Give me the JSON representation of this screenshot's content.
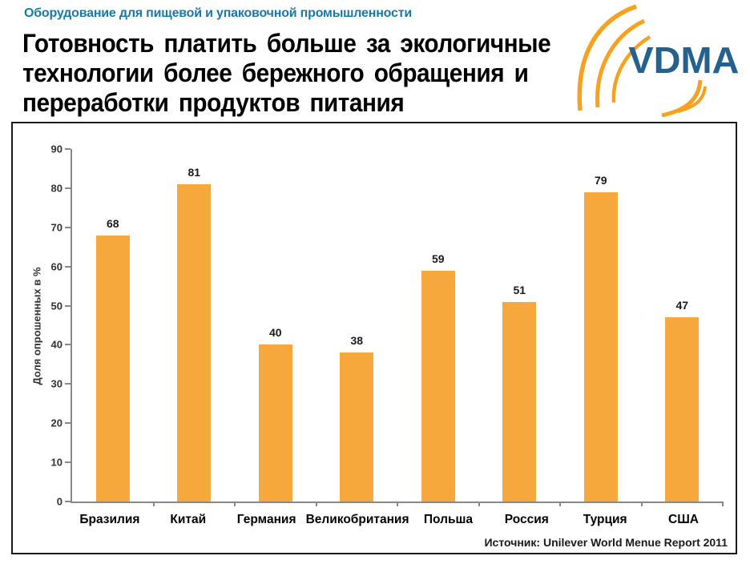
{
  "header": {
    "kicker": "Оборудование для пищевой и упаковочной промышленности",
    "title": "Готовность платить больше за экологичные\nтехнологии более бережного обращения и\nпереработки продуктов питания"
  },
  "logo": {
    "text": "VDMA",
    "blue": "#25618F",
    "orange": "#F7A11E"
  },
  "chart_data": {
    "type": "bar",
    "title": "",
    "categories": [
      "Бразилия",
      "Китай",
      "Германия",
      "Великобритания",
      "Польша",
      "Россия",
      "Турция",
      "США"
    ],
    "values": [
      68,
      81,
      40,
      38,
      59,
      51,
      79,
      47
    ],
    "xlabel": "",
    "ylabel": "Доля опрошенных в %",
    "ylim": [
      0,
      90
    ],
    "yticks": [
      0,
      10,
      20,
      30,
      40,
      50,
      60,
      70,
      80,
      90
    ],
    "grid": false,
    "legend": null,
    "bar_color": "#F6A83D",
    "source": "Источник: Unilever World Menue Report 2011"
  }
}
